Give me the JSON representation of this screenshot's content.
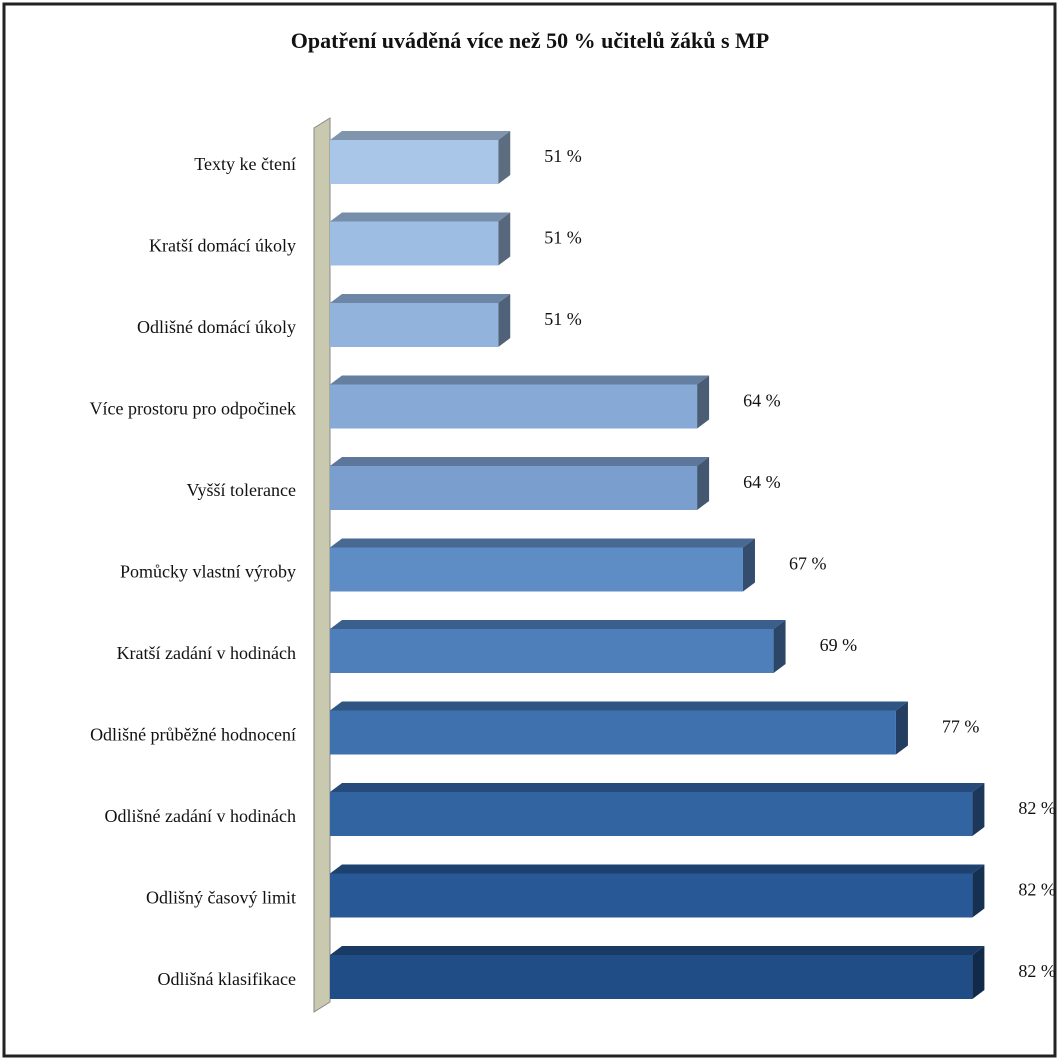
{
  "chart_data": {
    "type": "bar",
    "orientation": "horizontal",
    "title": "Opatření uváděná více než 50 % učitelů žáků s MP",
    "categories": [
      "Texty ke čtení",
      "Kratší domácí úkoly",
      "Odlišné domácí úkoly",
      "Více prostoru pro odpočinek",
      "Vyšší tolerance",
      "Pomůcky vlastní výroby",
      "Kratší zadání v hodinách",
      "Odlišné průběžné hodnocení",
      "Odlišné zadání v hodinách",
      "Odlišný časový limit",
      "Odlišná klasifikace"
    ],
    "values": [
      51,
      51,
      51,
      64,
      64,
      67,
      69,
      77,
      82,
      82,
      82
    ],
    "value_labels": [
      "51 %",
      "51 %",
      "51 %",
      "64 %",
      "64 %",
      "67 %",
      "69 %",
      "77 %",
      "82 %",
      "82 %",
      "82 %"
    ],
    "colors": [
      "#a9c6e8",
      "#9ebde2",
      "#92b3dc",
      "#86a9d5",
      "#7a9fce",
      "#5e8cc4",
      "#4f7fba",
      "#3f71ae",
      "#3264a2",
      "#285895",
      "#214d86"
    ],
    "xlim": [
      40,
      84
    ]
  }
}
